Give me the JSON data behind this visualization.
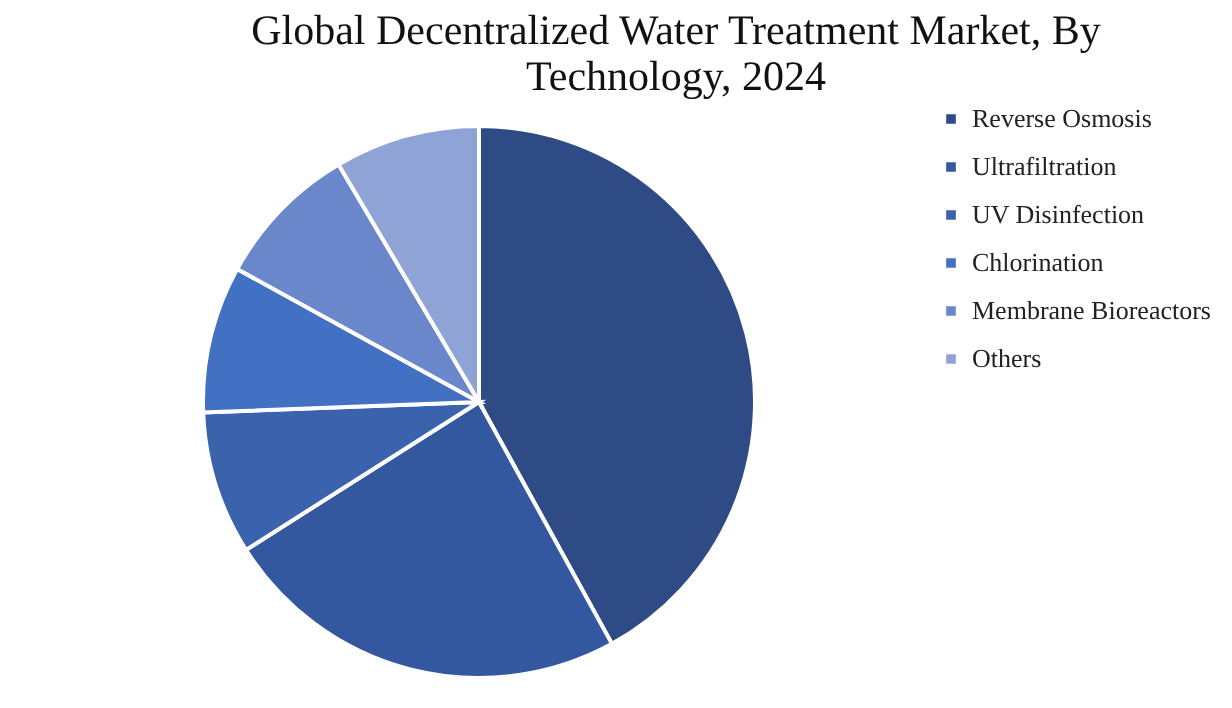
{
  "chart_data": {
    "type": "pie",
    "title": "Global Decentralized Water Treatment Market, By Technology, 2024",
    "categories": [
      "Reverse Osmosis",
      "Ultrafiltration",
      "UV Disinfection",
      "Chlorination",
      "Membrane Bioreactors",
      "Others"
    ],
    "values": [
      42,
      24,
      8.4,
      8.6,
      8.5,
      8.5
    ],
    "colors": [
      "#2f4b86",
      "#34589f",
      "#3a62ad",
      "#4270c2",
      "#6a87cb",
      "#8fa3d6"
    ],
    "legend": "right"
  }
}
